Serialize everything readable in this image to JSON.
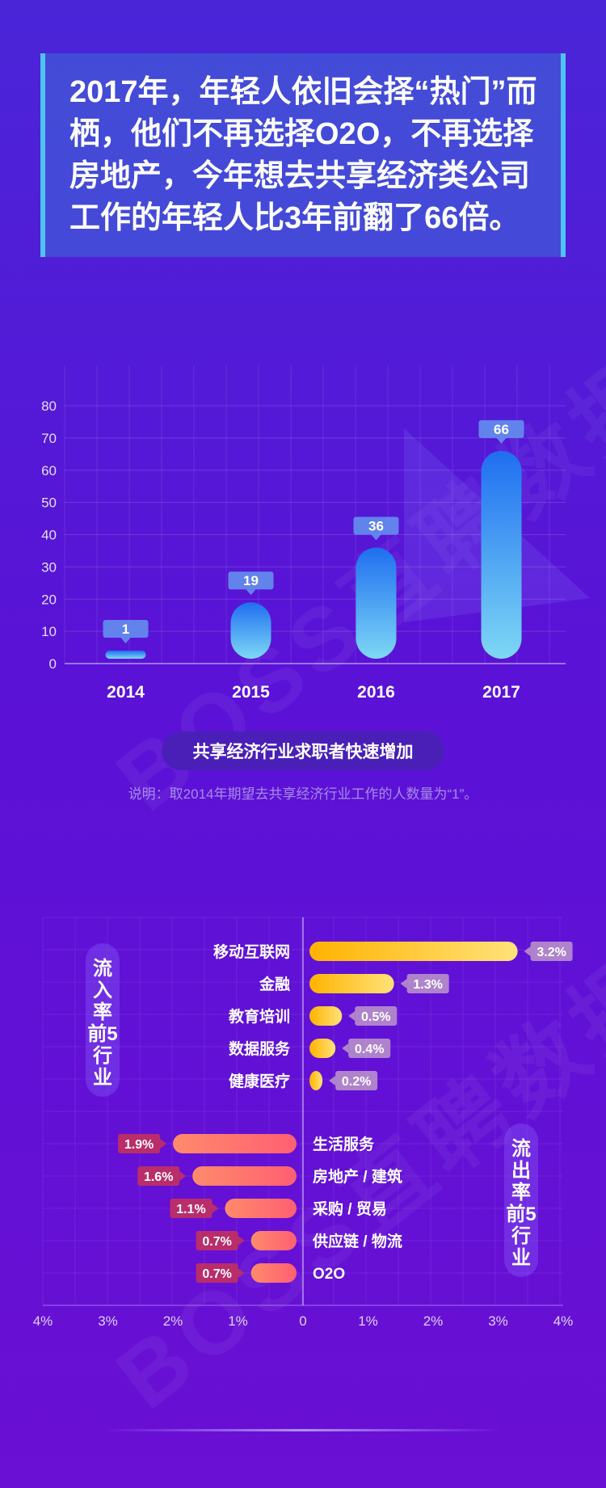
{
  "watermarks": [
    "BOSS直聘数据研究",
    "BOSS直聘数据研究"
  ],
  "headline": "2017年，年轻人依旧会择“热门”而栖，他们不再选择O2O，不再选择房地产，今年想去共享经济类公司工作的年轻人比3年前翻了66倍。",
  "caption": "共享经济行业求职者快速增加",
  "note": "说明：取2014年期望去共享经济行业工作的人数量为“1”。",
  "inflow_label": "流入率前5行业",
  "outflow_label": "流出率前5行业",
  "colors": {
    "bar_top": "#1f6ef0",
    "bar_bottom": "#7dd8f5",
    "inflow_start": "#ffb300",
    "inflow_end": "#ffe27a",
    "outflow_start": "#ff5f72",
    "outflow_end": "#ff8a6b"
  },
  "chart_data": [
    {
      "type": "bar",
      "categories": [
        "2014",
        "2015",
        "2016",
        "2017"
      ],
      "values": [
        1,
        19,
        36,
        66
      ],
      "data_labels": [
        "1",
        "19",
        "36",
        "66"
      ],
      "ylim": [
        0,
        80
      ],
      "yticks": [
        "0",
        "10",
        "20",
        "30",
        "40",
        "50",
        "60",
        "70",
        "80"
      ],
      "grid": true,
      "title": "共享经济行业求职者快速增加"
    },
    {
      "type": "bar",
      "orientation": "horizontal",
      "xlim": [
        -4,
        4
      ],
      "xticks": [
        "4%",
        "3%",
        "2%",
        "1%",
        "0",
        "1%",
        "2%",
        "3%",
        "4%"
      ],
      "inflow": [
        {
          "label": "移动互联网",
          "value": 3.2,
          "text": "3.2%"
        },
        {
          "label": "金融",
          "value": 1.3,
          "text": "1.3%"
        },
        {
          "label": "教育培训",
          "value": 0.5,
          "text": "0.5%"
        },
        {
          "label": "数据服务",
          "value": 0.4,
          "text": "0.4%"
        },
        {
          "label": "健康医疗",
          "value": 0.2,
          "text": "0.2%"
        }
      ],
      "outflow": [
        {
          "label": "生活服务",
          "value": 1.9,
          "text": "1.9%"
        },
        {
          "label": "房地产 / 建筑",
          "value": 1.6,
          "text": "1.6%"
        },
        {
          "label": "采购 / 贸易",
          "value": 1.1,
          "text": "1.1%"
        },
        {
          "label": "供应链 / 物流",
          "value": 0.7,
          "text": "0.7%"
        },
        {
          "label": "O2O",
          "value": 0.7,
          "text": "0.7%"
        }
      ]
    }
  ]
}
